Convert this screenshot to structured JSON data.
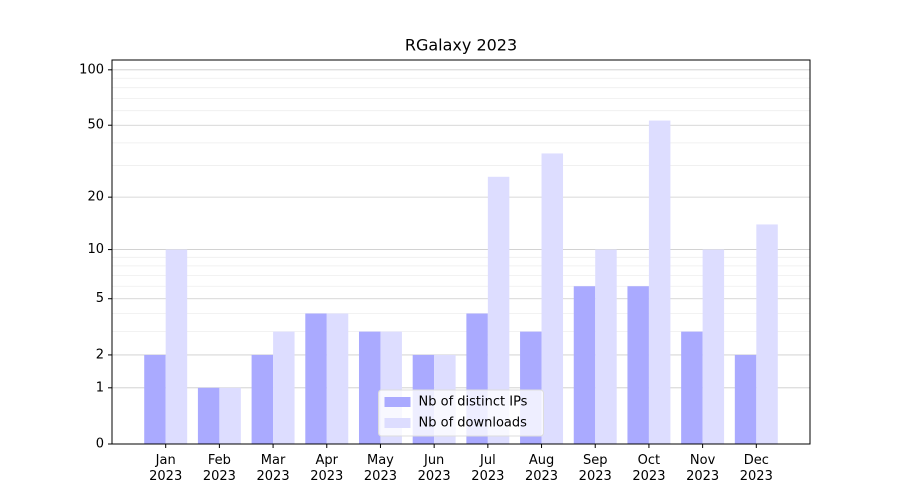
{
  "chart_data": {
    "type": "bar",
    "title": "RGalaxy 2023",
    "categories": [
      "Jan\n2023",
      "Feb\n2023",
      "Mar\n2023",
      "Apr\n2023",
      "May\n2023",
      "Jun\n2023",
      "Jul\n2023",
      "Aug\n2023",
      "Sep\n2023",
      "Oct\n2023",
      "Nov\n2023",
      "Dec\n2023"
    ],
    "series": [
      {
        "name": "Nb of distinct IPs",
        "color": "#aaaaff",
        "values": [
          2,
          1,
          2,
          4,
          3,
          2,
          4,
          3,
          6,
          6,
          3,
          2
        ]
      },
      {
        "name": "Nb of downloads",
        "color": "#ddddff",
        "values": [
          10,
          1,
          3,
          4,
          3,
          2,
          26,
          35,
          10,
          53,
          10,
          14
        ]
      }
    ],
    "yscale": "log1p",
    "ylim": [
      0,
      113
    ],
    "yticks": [
      0,
      1,
      2,
      5,
      10,
      20,
      50,
      100
    ],
    "yminorticks": [
      3,
      4,
      6,
      7,
      8,
      9,
      30,
      40,
      60,
      70,
      80,
      90
    ],
    "grid": true,
    "legend": "lower center"
  }
}
